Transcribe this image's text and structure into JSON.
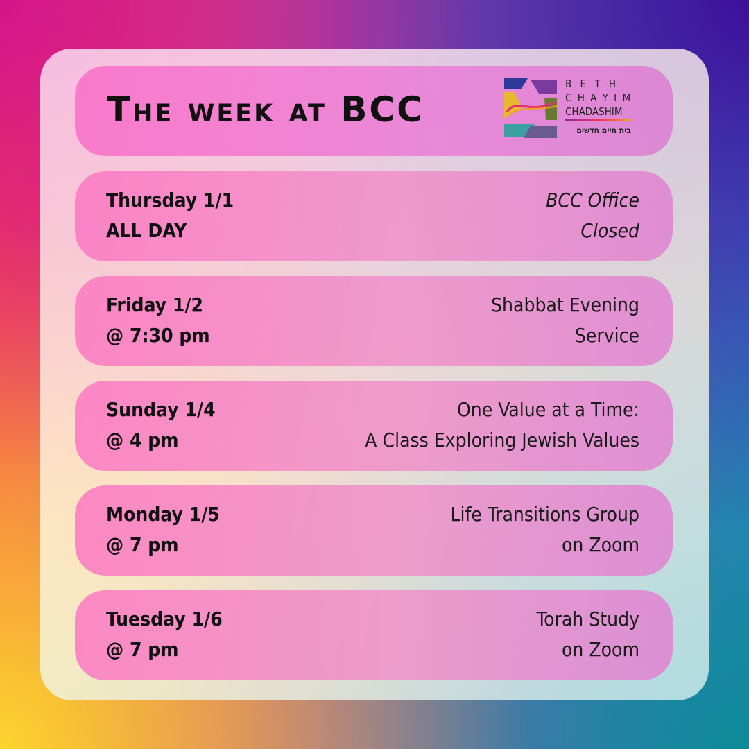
{
  "header": {
    "title": "The week at BCC",
    "logo": {
      "line1": "B E T H",
      "line2": "C H A Y I M",
      "line3": "CHADASHIM",
      "hebrew": "בית חיים חדשים",
      "monogram": "BCC"
    }
  },
  "events": [
    {
      "day": "Thursday 1/1",
      "time": "ALL DAY",
      "title_line1": "BCC Office",
      "title_line2": "Closed",
      "italic": true
    },
    {
      "day": "Friday 1/2",
      "time": "@ 7:30 pm",
      "title_line1": "Shabbat Evening",
      "title_line2": "Service"
    },
    {
      "day": "Sunday 1/4",
      "time": "@ 4 pm",
      "title_line1": "One Value at a Time:",
      "title_line2": "A Class Exploring Jewish Values"
    },
    {
      "day": "Monday 1/5",
      "time": "@ 7 pm",
      "title_line1": "Life Transitions Group",
      "title_line2": "on Zoom"
    },
    {
      "day": "Tuesday 1/6",
      "time": "@ 7 pm",
      "title_line1": "Torah Study",
      "title_line2": "on Zoom"
    }
  ]
}
